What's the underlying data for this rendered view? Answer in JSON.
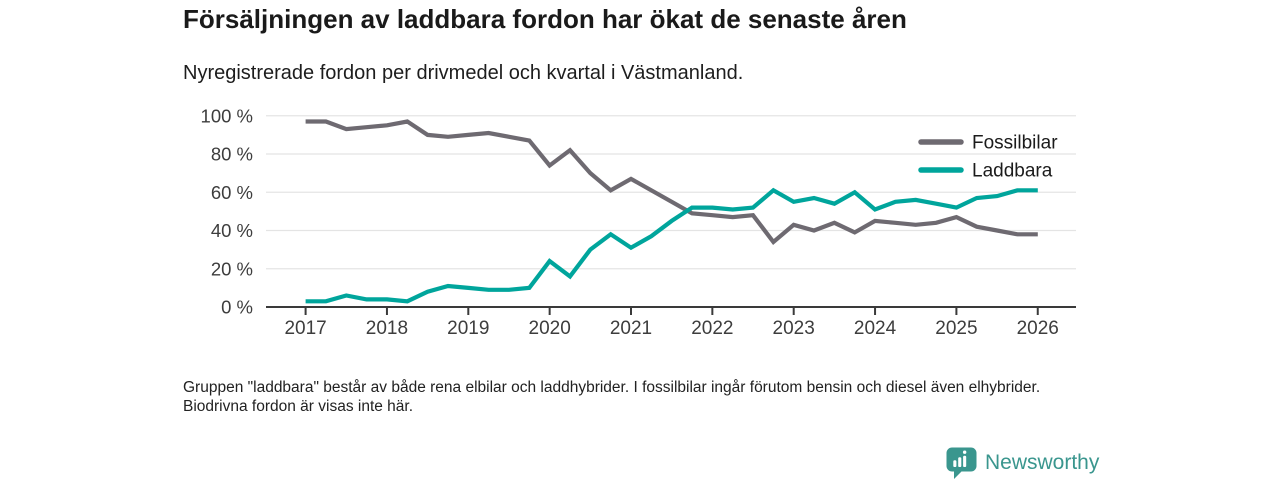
{
  "chart_data": {
    "type": "line",
    "title": "Försäljningen av laddbara fordon har ökat de senaste åren",
    "subtitle": "Nyregistrerade fordon per drivmedel och kvartal i Västmanland.",
    "x_frequency": "quarterly",
    "x_start": "2017 Q1",
    "x_end": "2026 Q1",
    "x_tick_labels": [
      "2017",
      "2018",
      "2019",
      "2020",
      "2021",
      "2022",
      "2023",
      "2024",
      "2025",
      "2026"
    ],
    "y_tick_labels": [
      "0 %",
      "20 %",
      "40 %",
      "60 %",
      "80 %",
      "100 %"
    ],
    "ylim": [
      0,
      100
    ],
    "grid": true,
    "legend_position": "top-right",
    "axis_color": "#3a3a3a",
    "gridline_color": "#e4e4e4",
    "series": [
      {
        "name": "Fossilbilar",
        "color": "#6E6A71",
        "values": [
          97,
          97,
          93,
          94,
          95,
          97,
          90,
          89,
          90,
          91,
          89,
          87,
          74,
          82,
          70,
          61,
          67,
          61,
          55,
          49,
          48,
          47,
          48,
          34,
          43,
          40,
          44,
          39,
          45,
          44,
          43,
          44,
          47,
          42,
          40,
          38,
          38
        ]
      },
      {
        "name": "Laddbara",
        "color": "#00A59C",
        "values": [
          3,
          3,
          6,
          4,
          4,
          3,
          8,
          11,
          10,
          9,
          9,
          10,
          24,
          16,
          30,
          38,
          31,
          37,
          45,
          52,
          52,
          51,
          52,
          61,
          55,
          57,
          54,
          60,
          51,
          55,
          56,
          54,
          52,
          57,
          58,
          61,
          61
        ]
      }
    ]
  },
  "footnote": "Gruppen \"laddbara\" består av både rena elbilar och laddhybrider. I fossilbilar ingår förutom bensin och diesel även elhybrider. Biodrivna fordon är visas inte här.",
  "branding": {
    "logo_text": "Newsworthy",
    "logo_color": "#3a968e"
  }
}
